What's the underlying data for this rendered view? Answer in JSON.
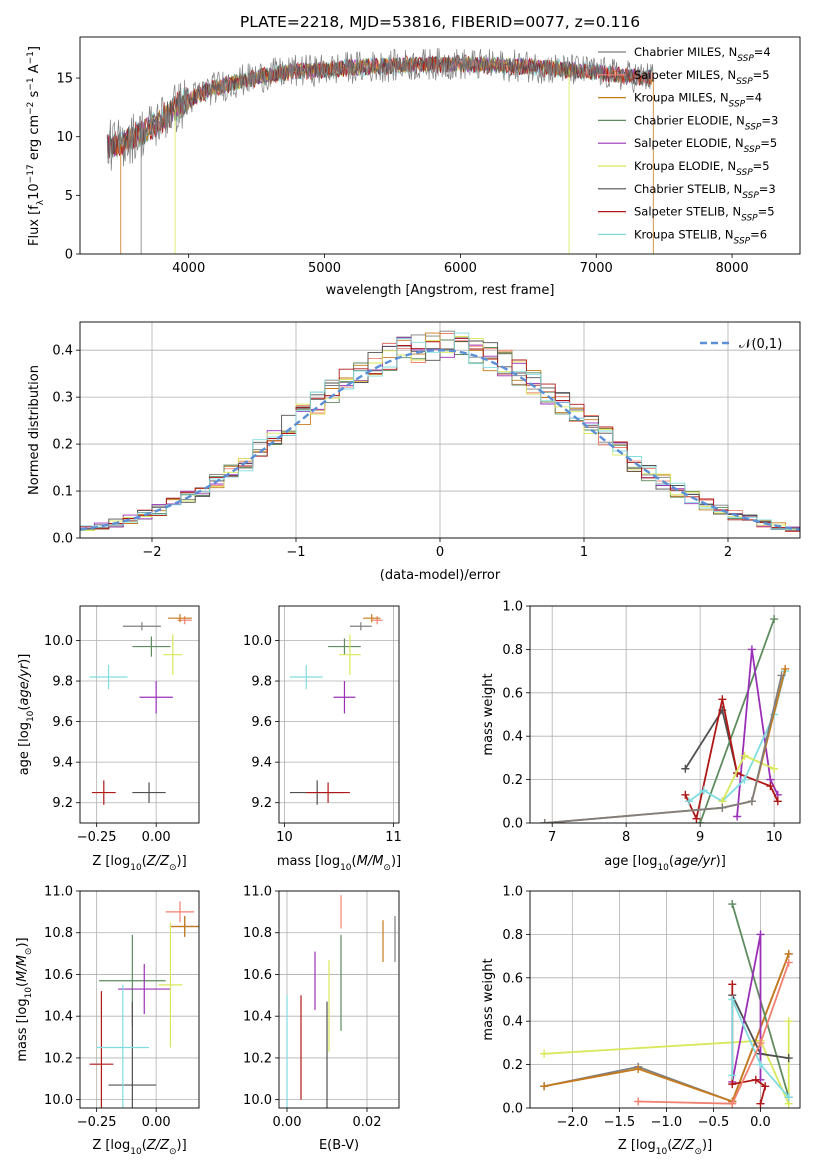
{
  "figure_title": "PLATE=2218, MJD=53816, FIBERID=0077, z=0.116",
  "models": [
    {
      "name": "Chabrier MILES",
      "nssp": "4",
      "color": "#7f7f7f"
    },
    {
      "name": "Salpeter MILES",
      "nssp": "5",
      "color": "#f28070"
    },
    {
      "name": "Kroupa MILES",
      "nssp": "4",
      "color": "#c77a1c"
    },
    {
      "name": "Chabrier ELODIE",
      "nssp": "3",
      "color": "#5e8c5e"
    },
    {
      "name": "Salpeter ELODIE",
      "nssp": "5",
      "color": "#9b30b8"
    },
    {
      "name": "Kroupa ELODIE",
      "nssp": "5",
      "color": "#d9e85a"
    },
    {
      "name": "Chabrier STELIB",
      "nssp": "3",
      "color": "#505050"
    },
    {
      "name": "Salpeter STELIB",
      "nssp": "5",
      "color": "#b01818"
    },
    {
      "name": "Kroupa STELIB",
      "nssp": "6",
      "color": "#80dce0"
    }
  ],
  "chart_data": [
    {
      "id": "spectrum",
      "type": "line",
      "xlabel": "wavelength [Angstrom, rest frame]",
      "ylabel": "Flux [f_λ10^-17 erg cm^-2 s^-1 A^-1]",
      "xlim": [
        3200,
        8500
      ],
      "ylim": [
        0,
        18.5
      ],
      "xticks": [
        4000,
        5000,
        6000,
        7000,
        8000
      ],
      "yticks": [
        0,
        5,
        10,
        15
      ],
      "continuum": [
        [
          3400,
          9.2
        ],
        [
          3500,
          9.4
        ],
        [
          3600,
          10
        ],
        [
          3700,
          10.6
        ],
        [
          3800,
          11.5
        ],
        [
          3900,
          12.4
        ],
        [
          4000,
          13.1
        ],
        [
          4100,
          13.8
        ],
        [
          4200,
          14.2
        ],
        [
          4400,
          14.8
        ],
        [
          4600,
          15.3
        ],
        [
          4800,
          15.6
        ],
        [
          5000,
          15.7
        ],
        [
          5200,
          15.9
        ],
        [
          5400,
          16.0
        ],
        [
          5600,
          16.1
        ],
        [
          5800,
          16.2
        ],
        [
          6000,
          16.2
        ],
        [
          6200,
          16.1
        ],
        [
          6500,
          16.0
        ],
        [
          6800,
          15.7
        ],
        [
          7000,
          15.5
        ],
        [
          7200,
          15.2
        ],
        [
          7400,
          15.0
        ]
      ],
      "grid": false,
      "legend_position": "upper right"
    },
    {
      "id": "residual_hist",
      "type": "histogram",
      "xlabel": "(data-model)/error",
      "ylabel": "Normed distribution",
      "xlim": [
        -2.5,
        2.5
      ],
      "ylim": [
        0,
        0.46
      ],
      "xticks": [
        -2,
        -1,
        0,
        1,
        2
      ],
      "yticks": [
        0,
        0.1,
        0.2,
        0.3,
        0.4
      ],
      "bin_width": 0.1,
      "reference_curve": {
        "name": "𝒩(0,1)",
        "mean": 0,
        "sigma": 1,
        "peak": 0.4,
        "color": "#5b8fd6"
      },
      "grid": true,
      "legend_position": "upper right"
    },
    {
      "id": "age_vs_Z",
      "type": "scatter",
      "xlabel": "Z [log10(Z/Z⊙)]",
      "ylabel": "age [log10(age/yr)]",
      "xlim": [
        -0.32,
        0.18
      ],
      "ylim": [
        9.1,
        10.17
      ],
      "xticks": [
        -0.25,
        0.0
      ],
      "xticklabels": [
        "−0.25",
        "0.00"
      ],
      "yticks": [
        9.2,
        9.4,
        9.6,
        9.8,
        10.0
      ],
      "points": [
        {
          "model": 0,
          "x": -0.06,
          "y": 10.07,
          "xerr": 0.08,
          "yerr": 0.02
        },
        {
          "model": 1,
          "x": 0.12,
          "y": 10.1,
          "xerr": 0.03,
          "yerr": 0.02
        },
        {
          "model": 2,
          "x": 0.1,
          "y": 10.11,
          "xerr": 0.05,
          "yerr": 0.02
        },
        {
          "model": 3,
          "x": -0.02,
          "y": 9.97,
          "xerr": 0.08,
          "yerr": 0.05
        },
        {
          "model": 4,
          "x": 0.0,
          "y": 9.72,
          "xerr": 0.07,
          "yerr": 0.08
        },
        {
          "model": 5,
          "x": 0.07,
          "y": 9.93,
          "xerr": 0.04,
          "yerr": 0.1
        },
        {
          "model": 6,
          "x": -0.03,
          "y": 9.25,
          "xerr": 0.07,
          "yerr": 0.05
        },
        {
          "model": 7,
          "x": -0.22,
          "y": 9.25,
          "xerr": 0.05,
          "yerr": 0.06
        },
        {
          "model": 8,
          "x": -0.2,
          "y": 9.82,
          "xerr": 0.08,
          "yerr": 0.06
        }
      ]
    },
    {
      "id": "age_vs_mass",
      "type": "scatter",
      "xlabel": "mass [log10(M/M⊙)]",
      "ylabel": "",
      "xlim": [
        9.95,
        11.05
      ],
      "ylim": [
        9.1,
        10.17
      ],
      "xticks": [
        10,
        11
      ],
      "yticks": [
        9.2,
        9.4,
        9.6,
        9.8,
        10.0
      ],
      "points": [
        {
          "model": 0,
          "x": 10.7,
          "y": 10.07,
          "xerr": 0.1,
          "yerr": 0.02
        },
        {
          "model": 1,
          "x": 10.85,
          "y": 10.1,
          "xerr": 0.05,
          "yerr": 0.02
        },
        {
          "model": 2,
          "x": 10.8,
          "y": 10.11,
          "xerr": 0.08,
          "yerr": 0.02
        },
        {
          "model": 3,
          "x": 10.55,
          "y": 9.97,
          "xerr": 0.15,
          "yerr": 0.04
        },
        {
          "model": 4,
          "x": 10.55,
          "y": 9.72,
          "xerr": 0.1,
          "yerr": 0.08
        },
        {
          "model": 5,
          "x": 10.6,
          "y": 9.93,
          "xerr": 0.1,
          "yerr": 0.1
        },
        {
          "model": 6,
          "x": 10.3,
          "y": 9.25,
          "xerr": 0.25,
          "yerr": 0.06
        },
        {
          "model": 7,
          "x": 10.4,
          "y": 9.25,
          "xerr": 0.2,
          "yerr": 0.05
        },
        {
          "model": 8,
          "x": 10.2,
          "y": 9.82,
          "xerr": 0.15,
          "yerr": 0.06
        }
      ]
    },
    {
      "id": "weight_vs_age",
      "type": "line",
      "xlabel": "age [log10(age/yr)]",
      "ylabel": "mass weight",
      "xlim": [
        6.7,
        10.35
      ],
      "ylim": [
        0,
        1.0
      ],
      "xticks": [
        7,
        8,
        9,
        10
      ],
      "yticks": [
        0,
        0.2,
        0.4,
        0.6,
        0.8,
        1.0
      ],
      "series": [
        {
          "model": 6,
          "x": [
            8.8,
            9.3,
            9.5
          ],
          "y": [
            0.25,
            0.52,
            0.23
          ]
        },
        {
          "model": 3,
          "x": [
            9.0,
            10.0
          ],
          "y": [
            0.0,
            0.94
          ]
        },
        {
          "model": 4,
          "x": [
            9.5,
            9.7,
            9.95,
            10.05
          ],
          "y": [
            0.03,
            0.8,
            0.2,
            0.13
          ]
        },
        {
          "model": 7,
          "x": [
            8.8,
            8.95,
            9.3,
            9.5,
            9.95,
            10.05
          ],
          "y": [
            0.13,
            0.02,
            0.57,
            0.23,
            0.17,
            0.1
          ]
        },
        {
          "model": 8,
          "x": [
            8.85,
            9.05,
            9.3,
            9.6,
            10.0,
            10.15
          ],
          "y": [
            0.1,
            0.15,
            0.1,
            0.2,
            0.5,
            0.7
          ]
        },
        {
          "model": 5,
          "x": [
            9.3,
            9.6,
            10.0
          ],
          "y": [
            0.1,
            0.31,
            0.25
          ]
        },
        {
          "model": 2,
          "x": [
            6.9,
            9.3,
            9.7,
            10.15
          ],
          "y": [
            0.0,
            0.07,
            0.1,
            0.71
          ]
        },
        {
          "model": 0,
          "x": [
            6.9,
            9.3,
            9.7,
            10.1
          ],
          "y": [
            0.0,
            0.07,
            0.1,
            0.68
          ]
        }
      ]
    },
    {
      "id": "mass_vs_Z",
      "type": "scatter",
      "xlabel": "Z [log10(Z/Z⊙)]",
      "ylabel": "mass [log10(M/M⊙)]",
      "xlim": [
        -0.32,
        0.18
      ],
      "ylim": [
        9.96,
        11.0
      ],
      "xticks": [
        -0.25,
        0.0
      ],
      "xticklabels": [
        "−0.25",
        "0.00"
      ],
      "yticks": [
        10.0,
        10.2,
        10.4,
        10.6,
        10.8,
        11.0
      ],
      "points": [
        {
          "model": 0,
          "x": 0.12,
          "y": 10.83,
          "xerr": 0.06,
          "yerr": 0.05
        },
        {
          "model": 1,
          "x": 0.1,
          "y": 10.9,
          "xerr": 0.06,
          "yerr": 0.05
        },
        {
          "model": 2,
          "x": 0.12,
          "y": 10.83,
          "xerr": 0.06,
          "yerr": 0.05
        },
        {
          "model": 3,
          "x": -0.1,
          "y": 10.57,
          "xerr": 0.14,
          "yerr": 0.22
        },
        {
          "model": 4,
          "x": -0.05,
          "y": 10.53,
          "xerr": 0.11,
          "yerr": 0.12
        },
        {
          "model": 5,
          "x": 0.06,
          "y": 10.55,
          "xerr": 0.05,
          "yerr": 0.3
        },
        {
          "model": 6,
          "x": -0.1,
          "y": 10.07,
          "xerr": 0.1,
          "yerr": 0.4
        },
        {
          "model": 7,
          "x": -0.23,
          "y": 10.17,
          "xerr": 0.05,
          "yerr": 0.35
        },
        {
          "model": 8,
          "x": -0.14,
          "y": 10.25,
          "xerr": 0.11,
          "yerr": 0.3
        }
      ]
    },
    {
      "id": "mass_vs_ebv",
      "type": "scatter",
      "xlabel": "E(B-V)",
      "ylabel": "",
      "xlim": [
        -0.002,
        0.028
      ],
      "ylim": [
        9.96,
        11.0
      ],
      "xticks": [
        0.0,
        0.02
      ],
      "xticklabels": [
        "0.00",
        "0.02"
      ],
      "yticks": [
        10.0,
        10.2,
        10.4,
        10.6,
        10.8,
        11.0
      ],
      "points": [
        {
          "model": 0,
          "x": 0.027,
          "y": 10.77,
          "xerr": 0,
          "yerr": 0.11
        },
        {
          "model": 2,
          "x": 0.024,
          "y": 10.76,
          "xerr": 0,
          "yerr": 0.1
        },
        {
          "model": 1,
          "x": 0.0135,
          "y": 10.9,
          "xerr": 0,
          "yerr": 0.08
        },
        {
          "model": 3,
          "x": 0.0135,
          "y": 10.56,
          "xerr": 0,
          "yerr": 0.23
        },
        {
          "model": 4,
          "x": 0.007,
          "y": 10.57,
          "xerr": 0,
          "yerr": 0.14
        },
        {
          "model": 5,
          "x": 0.0105,
          "y": 10.45,
          "xerr": 0,
          "yerr": 0.22
        },
        {
          "model": 6,
          "x": 0.01,
          "y": 10.15,
          "xerr": 0,
          "yerr": 0.32
        },
        {
          "model": 7,
          "x": 0.0035,
          "y": 10.25,
          "xerr": 0,
          "yerr": 0.25
        },
        {
          "model": 8,
          "x": 0.0,
          "y": 10.2,
          "xerr": 0,
          "yerr": 0.3
        }
      ]
    },
    {
      "id": "weight_vs_Z",
      "type": "line",
      "xlabel": "Z [log10(Z/Z⊙)]",
      "ylabel": "mass weight",
      "xlim": [
        -2.45,
        0.42
      ],
      "ylim": [
        0,
        1.0
      ],
      "xticks": [
        -2.0,
        -1.5,
        -1.0,
        -0.5,
        0.0
      ],
      "xticklabels": [
        "−2.0",
        "−1.5",
        "−1.0",
        "−0.5",
        "0.0"
      ],
      "yticks": [
        0,
        0.2,
        0.4,
        0.6,
        0.8,
        1.0
      ],
      "series": [
        {
          "model": 5,
          "x": [
            -2.3,
            0.0,
            0.3,
            0.3
          ],
          "y": [
            0.25,
            0.31,
            0.02,
            0.4
          ]
        },
        {
          "model": 0,
          "x": [
            -2.3,
            -1.3,
            -0.3,
            0.3
          ],
          "y": [
            0.1,
            0.19,
            0.03,
            0.71
          ]
        },
        {
          "model": 2,
          "x": [
            -2.3,
            -1.3,
            -0.3,
            0.3
          ],
          "y": [
            0.1,
            0.18,
            0.03,
            0.71
          ]
        },
        {
          "model": 3,
          "x": [
            -0.3,
            0.3
          ],
          "y": [
            0.94,
            0.05
          ]
        },
        {
          "model": 6,
          "x": [
            -0.3,
            0.0,
            0.3
          ],
          "y": [
            0.52,
            0.25,
            0.23
          ]
        },
        {
          "model": 4,
          "x": [
            -0.3,
            0.0,
            0.0
          ],
          "y": [
            0.12,
            0.8,
            0.13
          ]
        },
        {
          "model": 7,
          "x": [
            -0.3,
            -0.3,
            -0.05,
            0.05,
            0.0
          ],
          "y": [
            0.57,
            0.11,
            0.13,
            0.1,
            0.02
          ]
        },
        {
          "model": 8,
          "x": [
            -0.3,
            -0.3,
            0.0,
            0.3
          ],
          "y": [
            0.15,
            0.5,
            0.2,
            0.05
          ]
        },
        {
          "model": 1,
          "x": [
            -1.3,
            -0.3,
            0.0,
            0.3
          ],
          "y": [
            0.03,
            0.02,
            0.3,
            0.67
          ]
        }
      ]
    }
  ]
}
